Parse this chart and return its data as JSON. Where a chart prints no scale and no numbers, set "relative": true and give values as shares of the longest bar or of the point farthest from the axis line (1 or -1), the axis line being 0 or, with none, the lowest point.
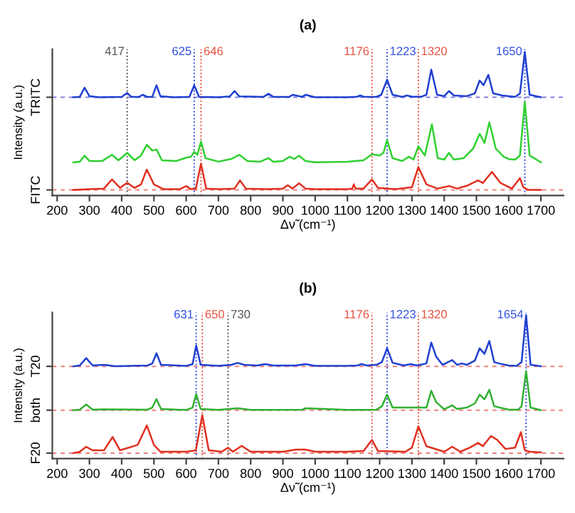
{
  "chart_data": [
    {
      "type": "line",
      "title": "(a)",
      "xlabel": "Δν̃ (cm⁻¹)",
      "ylabel": "Intensity (a.u.)",
      "relative": true,
      "legend": false,
      "grid": false,
      "marker": "none",
      "line_style": "solid",
      "xlim": [
        185,
        1770
      ],
      "xticks": [
        200,
        300,
        400,
        500,
        600,
        700,
        800,
        900,
        1000,
        1100,
        1200,
        1300,
        1400,
        1500,
        1600,
        1700
      ],
      "series": [
        {
          "color": "#2040d0",
          "x": [
            250,
            270,
            285,
            300,
            330,
            400,
            417,
            430,
            455,
            465,
            480,
            495,
            508,
            520,
            560,
            610,
            625,
            640,
            700,
            735,
            750,
            765,
            840,
            855,
            870,
            920,
            930,
            960,
            970,
            1000,
            1100,
            1130,
            1140,
            1150,
            1190,
            1205,
            1223,
            1240,
            1270,
            1285,
            1300,
            1330,
            1345,
            1360,
            1378,
            1400,
            1415,
            1430,
            1470,
            1495,
            1510,
            1522,
            1537,
            1552,
            1580,
            1600,
            1620,
            1635,
            1650,
            1665,
            1700
          ],
          "values": [
            0.672,
            0.675,
            0.741,
            0.68,
            0.672,
            0.675,
            0.703,
            0.675,
            0.675,
            0.69,
            0.674,
            0.675,
            0.759,
            0.68,
            0.672,
            0.675,
            0.759,
            0.675,
            0.672,
            0.678,
            0.717,
            0.678,
            0.675,
            0.697,
            0.675,
            0.675,
            0.69,
            0.675,
            0.69,
            0.672,
            0.672,
            0.676,
            0.685,
            0.676,
            0.675,
            0.69,
            0.8,
            0.69,
            0.675,
            0.685,
            0.676,
            0.676,
            0.69,
            0.872,
            0.69,
            0.68,
            0.717,
            0.685,
            0.68,
            0.7,
            0.793,
            0.76,
            0.834,
            0.7,
            0.685,
            0.68,
            0.675,
            0.7,
            1.0,
            0.69,
            0.672
          ]
        },
        {
          "color": "#30d030",
          "x": [
            250,
            270,
            285,
            300,
            340,
            370,
            390,
            417,
            440,
            460,
            478,
            495,
            508,
            525,
            570,
            600,
            615,
            625,
            635,
            646,
            660,
            700,
            740,
            765,
            790,
            830,
            855,
            870,
            900,
            920,
            935,
            950,
            970,
            1000,
            1100,
            1150,
            1176,
            1200,
            1212,
            1223,
            1240,
            1270,
            1290,
            1305,
            1320,
            1340,
            1362,
            1380,
            1400,
            1415,
            1430,
            1460,
            1490,
            1510,
            1525,
            1540,
            1560,
            1585,
            1600,
            1620,
            1635,
            1650,
            1665,
            1700
          ],
          "values": [
            0.2,
            0.205,
            0.248,
            0.21,
            0.21,
            0.255,
            0.215,
            0.269,
            0.215,
            0.25,
            0.328,
            0.285,
            0.293,
            0.215,
            0.21,
            0.234,
            0.24,
            0.276,
            0.255,
            0.352,
            0.23,
            0.205,
            0.225,
            0.255,
            0.21,
            0.205,
            0.231,
            0.205,
            0.21,
            0.241,
            0.225,
            0.248,
            0.21,
            0.2,
            0.205,
            0.215,
            0.259,
            0.25,
            0.27,
            0.362,
            0.23,
            0.21,
            0.241,
            0.22,
            0.317,
            0.25,
            0.476,
            0.23,
            0.22,
            0.269,
            0.22,
            0.23,
            0.3,
            0.407,
            0.34,
            0.49,
            0.3,
            0.24,
            0.224,
            0.22,
            0.25,
            0.638,
            0.25,
            0.2
          ]
        },
        {
          "color": "#e03020",
          "x": [
            250,
            300,
            345,
            370,
            395,
            417,
            440,
            460,
            478,
            500,
            530,
            580,
            600,
            615,
            630,
            646,
            662,
            700,
            750,
            767,
            785,
            850,
            900,
            915,
            930,
            950,
            970,
            1000,
            1100,
            1115,
            1120,
            1125,
            1150,
            1176,
            1195,
            1250,
            1300,
            1320,
            1345,
            1380,
            1415,
            1440,
            1470,
            1505,
            1520,
            1548,
            1575,
            1610,
            1635,
            1645,
            1660,
            1700
          ],
          "values": [
            0,
            0.005,
            0.01,
            0.076,
            0.015,
            0.052,
            0.015,
            0.04,
            0.148,
            0.04,
            0.005,
            0.005,
            0.028,
            0.005,
            0.01,
            0.19,
            0.01,
            0.005,
            0.01,
            0.069,
            0.01,
            0.005,
            0.01,
            0.034,
            0.01,
            0.048,
            0.01,
            0.005,
            0.005,
            0.01,
            0.041,
            0.01,
            0.01,
            0.076,
            0.015,
            0.005,
            0.02,
            0.166,
            0.04,
            0.01,
            0.028,
            0.01,
            0.03,
            0.069,
            0.05,
            0.131,
            0.05,
            0.01,
            0.086,
            0.02,
            0,
            0
          ]
        }
      ],
      "ref_lines": [
        {
          "axis": "y",
          "value": 0.672,
          "label": "TRITC",
          "color": "#8080e0",
          "line_style": "dashed"
        },
        {
          "axis": "y",
          "value": 0,
          "label": "FITC",
          "color": "#f08080",
          "line_style": "dashed"
        },
        {
          "axis": "x",
          "value": 417,
          "label": "417",
          "color": "#555555",
          "line_style": "dotted"
        },
        {
          "axis": "x",
          "value": 625,
          "label": "625",
          "color": "#3050e0",
          "line_style": "dotted"
        },
        {
          "axis": "x",
          "value": 646,
          "label": "646",
          "color": "#e85040",
          "line_style": "dotted"
        },
        {
          "axis": "x",
          "value": 1176,
          "label": "1176",
          "color": "#e85040",
          "line_style": "dotted"
        },
        {
          "axis": "x",
          "value": 1223,
          "label": "1223",
          "color": "#3050e0",
          "line_style": "dotted"
        },
        {
          "axis": "x",
          "value": 1320,
          "label": "1320",
          "color": "#e85040",
          "line_style": "dotted"
        },
        {
          "axis": "x",
          "value": 1650,
          "label": "1650",
          "color": "#3050e0",
          "line_style": "dotted"
        }
      ]
    },
    {
      "type": "line",
      "title": "(b)",
      "xlabel": "Δν̃ (cm⁻¹)",
      "ylabel": "Intensity (a.u.)",
      "relative": true,
      "legend": false,
      "grid": false,
      "marker": "none",
      "line_style": "solid",
      "xlim": [
        185,
        1770
      ],
      "xticks": [
        200,
        300,
        400,
        500,
        600,
        700,
        800,
        900,
        1000,
        1100,
        1200,
        1300,
        1400,
        1500,
        1600,
        1700
      ],
      "series": [
        {
          "color": "#2040d0",
          "x": [
            250,
            270,
            290,
            310,
            345,
            380,
            480,
            495,
            508,
            522,
            600,
            620,
            631,
            645,
            700,
            740,
            760,
            780,
            820,
            845,
            870,
            940,
            970,
            1000,
            1100,
            1130,
            1145,
            1160,
            1190,
            1207,
            1223,
            1240,
            1275,
            1295,
            1315,
            1345,
            1360,
            1375,
            1395,
            1425,
            1440,
            1455,
            1470,
            1495,
            1510,
            1525,
            1540,
            1555,
            1570,
            1600,
            1625,
            1640,
            1654,
            1668,
            1700
          ],
          "values": [
            0.629,
            0.635,
            0.689,
            0.635,
            0.64,
            0.63,
            0.635,
            0.65,
            0.724,
            0.64,
            0.632,
            0.645,
            0.781,
            0.64,
            0.632,
            0.64,
            0.654,
            0.64,
            0.635,
            0.645,
            0.635,
            0.635,
            0.645,
            0.632,
            0.632,
            0.635,
            0.645,
            0.635,
            0.64,
            0.66,
            0.76,
            0.655,
            0.635,
            0.645,
            0.635,
            0.65,
            0.802,
            0.7,
            0.64,
            0.675,
            0.64,
            0.65,
            0.64,
            0.67,
            0.76,
            0.72,
            0.813,
            0.66,
            0.65,
            0.635,
            0.632,
            0.66,
            1.0,
            0.64,
            0.629
          ]
        },
        {
          "color": "#30b030",
          "x": [
            250,
            270,
            290,
            310,
            345,
            480,
            495,
            508,
            522,
            600,
            620,
            631,
            645,
            700,
            760,
            800,
            960,
            970,
            1100,
            1190,
            1207,
            1223,
            1240,
            1345,
            1360,
            1375,
            1400,
            1425,
            1440,
            1470,
            1495,
            1510,
            1525,
            1540,
            1555,
            1600,
            1630,
            1640,
            1654,
            1668,
            1700
          ],
          "values": [
            0.311,
            0.315,
            0.353,
            0.315,
            0.318,
            0.315,
            0.33,
            0.392,
            0.32,
            0.313,
            0.33,
            0.428,
            0.32,
            0.313,
            0.325,
            0.313,
            0.315,
            0.325,
            0.313,
            0.315,
            0.34,
            0.424,
            0.33,
            0.33,
            0.452,
            0.37,
            0.318,
            0.346,
            0.32,
            0.33,
            0.36,
            0.424,
            0.39,
            0.459,
            0.34,
            0.315,
            0.315,
            0.34,
            0.594,
            0.33,
            0.311
          ]
        },
        {
          "color": "#e03020",
          "x": [
            250,
            270,
            290,
            310,
            345,
            372,
            395,
            450,
            478,
            500,
            520,
            600,
            630,
            650,
            670,
            710,
            730,
            745,
            772,
            800,
            900,
            940,
            970,
            1000,
            1100,
            1150,
            1176,
            1195,
            1280,
            1300,
            1320,
            1345,
            1400,
            1425,
            1450,
            1480,
            1505,
            1520,
            1545,
            1565,
            1590,
            1620,
            1638,
            1650,
            1665,
            1700
          ],
          "values": [
            0,
            0.01,
            0.046,
            0.02,
            0.02,
            0.117,
            0.02,
            0.06,
            0.201,
            0.06,
            0.01,
            0.01,
            0.02,
            0.276,
            0.02,
            0.01,
            0.039,
            0.01,
            0.053,
            0.01,
            0.01,
            0.025,
            0.025,
            0.01,
            0.01,
            0.015,
            0.095,
            0.015,
            0.01,
            0.04,
            0.194,
            0.05,
            0.01,
            0.046,
            0.01,
            0.04,
            0.074,
            0.05,
            0.124,
            0.095,
            0.03,
            0.04,
            0.152,
            0.02,
            0.01,
            0.005
          ]
        }
      ],
      "ref_lines": [
        {
          "axis": "y",
          "value": 0.629,
          "label": "T20",
          "color": "#f08080",
          "line_style": "dashed"
        },
        {
          "axis": "y",
          "value": 0.311,
          "label": "both",
          "color": "#f08080",
          "line_style": "dashed"
        },
        {
          "axis": "y",
          "value": 0,
          "label": "F20",
          "color": "#f08080",
          "line_style": "dashed"
        },
        {
          "axis": "x",
          "value": 631,
          "label": "631",
          "color": "#3050e0",
          "line_style": "dotted"
        },
        {
          "axis": "x",
          "value": 650,
          "label": "650",
          "color": "#e85040",
          "line_style": "dotted"
        },
        {
          "axis": "x",
          "value": 730,
          "label": "730",
          "color": "#555555",
          "line_style": "dotted"
        },
        {
          "axis": "x",
          "value": 1176,
          "label": "1176",
          "color": "#e85040",
          "line_style": "dotted"
        },
        {
          "axis": "x",
          "value": 1223,
          "label": "1223",
          "color": "#3050e0",
          "line_style": "dotted"
        },
        {
          "axis": "x",
          "value": 1320,
          "label": "1320",
          "color": "#e85040",
          "line_style": "dotted"
        },
        {
          "axis": "x",
          "value": 1654,
          "label": "1654",
          "color": "#3050e0",
          "line_style": "dotted"
        }
      ]
    }
  ]
}
